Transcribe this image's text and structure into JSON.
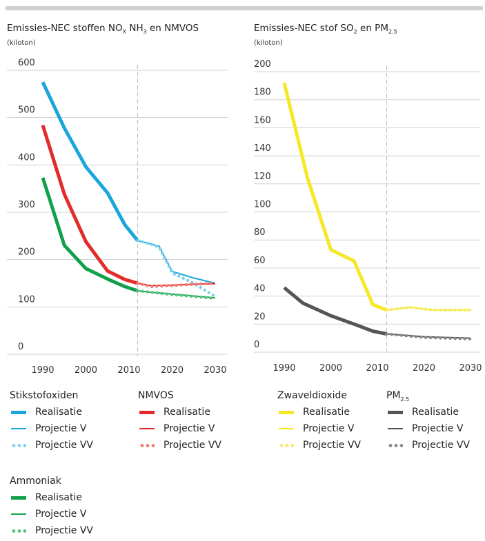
{
  "colors": {
    "stikstofoxiden": "#1aa6dc",
    "stikstofoxiden_light": "#7fd0ee",
    "nmvos": "#e32b2b",
    "nmvos_light": "#ee7a73",
    "ammoniak": "#12a14b",
    "ammoniak_light": "#58c17f",
    "zwaveldioxide": "#f5e827",
    "zwaveldioxide_light": "#f5ec6a",
    "pm25": "#555555",
    "pm25_light": "#888888",
    "grid": "#d0d0d0",
    "divider": "#bbbbbb"
  },
  "left_chart": {
    "title_pre": "Emissies-NEC stoffen NO",
    "title_sub1": "X",
    "title_mid": " NH",
    "title_sub2": "3",
    "title_post": " en NMVOS",
    "unit": "(kiloton)"
  },
  "right_chart": {
    "title_pre": "Emissies-NEC stof SO",
    "title_sub1": "2",
    "title_mid": " en PM",
    "title_sub2": "2.5",
    "unit": "(kiloton)"
  },
  "chart_data": [
    {
      "type": "line",
      "title": "Emissies-NEC stoffen NOX NH3 en NMVOS",
      "ylabel": "(kiloton)",
      "ylim": [
        0,
        600
      ],
      "xlim": [
        1990,
        2030
      ],
      "yticks": [
        0,
        100,
        200,
        300,
        400,
        500,
        600
      ],
      "xticks": [
        1990,
        2000,
        2010,
        2020,
        2030
      ],
      "divider_year": 2012,
      "grid": true,
      "series": [
        {
          "name": "Stikstofoxiden Realisatie",
          "style": "thick",
          "color_key": "stikstofoxiden",
          "x": [
            1990,
            1995,
            2000,
            2005,
            2009,
            2012
          ],
          "y": [
            575,
            478,
            396,
            341,
            274,
            240
          ]
        },
        {
          "name": "Stikstofoxiden Projectie V",
          "style": "thin",
          "color_key": "stikstofoxiden",
          "x": [
            2012,
            2015,
            2017,
            2020,
            2025,
            2030
          ],
          "y": [
            240,
            233,
            228,
            175,
            161,
            150
          ]
        },
        {
          "name": "Stikstofoxiden Projectie VV",
          "style": "dots",
          "color_key": "stikstofoxiden_light",
          "x": [
            2012,
            2015,
            2017,
            2020,
            2025,
            2030
          ],
          "y": [
            240,
            233,
            226,
            172,
            150,
            122
          ]
        },
        {
          "name": "NMVOS Realisatie",
          "style": "thick",
          "color_key": "nmvos",
          "x": [
            1990,
            1995,
            2000,
            2005,
            2009,
            2012
          ],
          "y": [
            484,
            338,
            238,
            176,
            158,
            150
          ]
        },
        {
          "name": "NMVOS Projectie V",
          "style": "thin",
          "color_key": "nmvos",
          "x": [
            2012,
            2015,
            2020,
            2025,
            2030
          ],
          "y": [
            150,
            145,
            146,
            148,
            149
          ]
        },
        {
          "name": "NMVOS Projectie VV",
          "style": "dots",
          "color_key": "nmvos_light",
          "x": [
            2012,
            2015,
            2020,
            2025,
            2030
          ],
          "y": [
            150,
            143,
            145,
            148,
            150
          ]
        },
        {
          "name": "Ammoniak Realisatie",
          "style": "thick",
          "color_key": "ammoniak",
          "x": [
            1990,
            1995,
            2000,
            2005,
            2009,
            2012
          ],
          "y": [
            373,
            230,
            181,
            159,
            143,
            134
          ]
        },
        {
          "name": "Ammoniak Projectie V",
          "style": "thin",
          "color_key": "ammoniak",
          "x": [
            2012,
            2015,
            2020,
            2025,
            2030
          ],
          "y": [
            134,
            131,
            127,
            123,
            119
          ]
        },
        {
          "name": "Ammoniak Projectie VV",
          "style": "dots",
          "color_key": "ammoniak_light",
          "x": [
            2012,
            2015,
            2020,
            2025,
            2030
          ],
          "y": [
            134,
            131,
            126,
            122,
            118
          ]
        }
      ]
    },
    {
      "type": "line",
      "title": "Emissies-NEC stof SO2 en PM2.5",
      "ylabel": "(kiloton)",
      "ylim": [
        0,
        200
      ],
      "xlim": [
        1990,
        2030
      ],
      "yticks": [
        0,
        20,
        40,
        60,
        80,
        100,
        120,
        140,
        160,
        180,
        200
      ],
      "xticks": [
        1990,
        2000,
        2010,
        2020,
        2030
      ],
      "divider_year": 2012,
      "grid": true,
      "series": [
        {
          "name": "Zwaveldioxide Realisatie",
          "style": "thick",
          "color_key": "zwaveldioxide",
          "x": [
            1990,
            1995,
            2000,
            2005,
            2009,
            2012
          ],
          "y": [
            192,
            124,
            73,
            65,
            34,
            30
          ]
        },
        {
          "name": "Zwaveldioxide Projectie V",
          "style": "thin",
          "color_key": "zwaveldioxide",
          "x": [
            2012,
            2017,
            2022,
            2030
          ],
          "y": [
            30,
            32,
            30,
            30
          ]
        },
        {
          "name": "Zwaveldioxide Projectie VV",
          "style": "dots",
          "color_key": "zwaveldioxide_light",
          "x": [
            2012,
            2017,
            2022,
            2030
          ],
          "y": [
            30,
            32,
            30,
            30
          ]
        },
        {
          "name": "PM2.5 Realisatie",
          "style": "thick",
          "color_key": "pm25",
          "x": [
            1990,
            1994,
            2000,
            2005,
            2009,
            2012
          ],
          "y": [
            46,
            35,
            26,
            20,
            15,
            13
          ]
        },
        {
          "name": "PM2.5 Projectie V",
          "style": "thin",
          "color_key": "pm25",
          "x": [
            2012,
            2020,
            2030
          ],
          "y": [
            13,
            11,
            10
          ]
        },
        {
          "name": "PM2.5 Projectie VV",
          "style": "dots",
          "color_key": "pm25_light",
          "x": [
            2012,
            2020,
            2030
          ],
          "y": [
            13,
            10.5,
            9.5
          ]
        }
      ]
    }
  ],
  "legend_left": {
    "groups": [
      {
        "heading": "Stikstofoxiden",
        "color_key": "stikstofoxiden",
        "light_key": "stikstofoxiden_light",
        "items": [
          "Realisatie",
          "Projectie V",
          "Projectie VV"
        ]
      },
      {
        "heading": "NMVOS",
        "color_key": "nmvos",
        "light_key": "nmvos_light",
        "items": [
          "Realisatie",
          "Projectie V",
          "Projectie VV"
        ]
      },
      {
        "heading": "Ammoniak",
        "color_key": "ammoniak",
        "light_key": "ammoniak_light",
        "items": [
          "Realisatie",
          "Projectie V",
          "Projectie VV"
        ]
      }
    ]
  },
  "legend_right": {
    "groups": [
      {
        "heading": "Zwaveldioxide",
        "color_key": "zwaveldioxide",
        "light_key": "zwaveldioxide_light",
        "items": [
          "Realisatie",
          "Projectie V",
          "Projectie VV"
        ]
      },
      {
        "heading": "PM",
        "heading_sub": "2.5",
        "color_key": "pm25",
        "light_key": "pm25_light",
        "items": [
          "Realisatie",
          "Projectie V",
          "Projectie VV"
        ]
      }
    ]
  }
}
